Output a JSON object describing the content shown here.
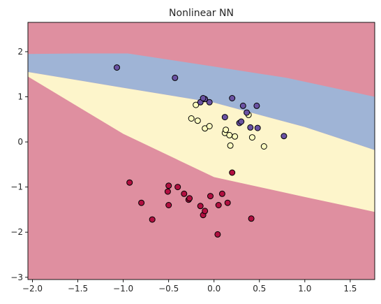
{
  "chart_data": {
    "type": "scatter",
    "title": "Nonlinear NN",
    "xlabel": "",
    "ylabel": "",
    "xlim": [
      -2.05,
      1.77
    ],
    "ylim": [
      -3.05,
      2.65
    ],
    "xticks": [
      -2.0,
      -1.5,
      -1.0,
      -0.5,
      0.0,
      0.5,
      1.0,
      1.5
    ],
    "xtick_labels": [
      "−2.0",
      "−1.5",
      "−1.0",
      "−0.5",
      "0.0",
      "0.5",
      "1.0",
      "1.5"
    ],
    "yticks": [
      -3,
      -2,
      -1,
      0,
      1,
      2
    ],
    "ytick_labels": [
      "−3",
      "−2",
      "−1",
      "0",
      "1",
      "2"
    ],
    "grid": false,
    "colors": {
      "region_red": "#df8fa0",
      "region_blue": "#9fb4d6",
      "region_yellow": "#fdf5cb",
      "class_red": "#b10f40",
      "class_yellow": "#fdfdbf",
      "class_purple": "#6a52a3"
    },
    "decision_regions": [
      {
        "class": "red",
        "color": "#df8fa0",
        "polygon": [
          [
            -2.05,
            2.65
          ],
          [
            1.77,
            2.65
          ],
          [
            1.77,
            -3.05
          ],
          [
            -2.05,
            -3.05
          ]
        ]
      },
      {
        "class": "blue",
        "color": "#9fb4d6",
        "polygon": [
          [
            -2.05,
            1.95
          ],
          [
            -1.5,
            1.96
          ],
          [
            -0.95,
            1.96
          ],
          [
            0.0,
            1.67
          ],
          [
            0.8,
            1.42
          ],
          [
            1.77,
            1.0
          ],
          [
            1.77,
            -0.18
          ],
          [
            1.0,
            0.33
          ],
          [
            0.0,
            0.87
          ],
          [
            -1.0,
            1.2
          ],
          [
            -2.05,
            1.55
          ]
        ]
      },
      {
        "class": "yellow",
        "color": "#fdf5cb",
        "polygon": [
          [
            -2.05,
            1.55
          ],
          [
            -1.0,
            1.2
          ],
          [
            0.0,
            0.87
          ],
          [
            1.0,
            0.33
          ],
          [
            1.77,
            -0.18
          ],
          [
            1.77,
            -1.55
          ],
          [
            1.0,
            -1.22
          ],
          [
            0.0,
            -0.78
          ],
          [
            -1.0,
            0.18
          ],
          [
            -2.05,
            1.45
          ]
        ]
      }
    ],
    "series": [
      {
        "class": "red",
        "color": "#b10f40",
        "points": [
          [
            -0.93,
            -0.9
          ],
          [
            -0.8,
            -1.35
          ],
          [
            -0.68,
            -1.72
          ],
          [
            -0.5,
            -0.97
          ],
          [
            -0.51,
            -1.1
          ],
          [
            -0.5,
            -1.4
          ],
          [
            -0.4,
            -1.0
          ],
          [
            -0.33,
            -1.15
          ],
          [
            -0.28,
            -1.28
          ],
          [
            -0.27,
            -1.25
          ],
          [
            -0.15,
            -1.42
          ],
          [
            -0.12,
            -1.62
          ],
          [
            -0.1,
            -1.53
          ],
          [
            -0.04,
            -1.2
          ],
          [
            0.05,
            -1.4
          ],
          [
            0.04,
            -2.05
          ],
          [
            0.09,
            -1.15
          ],
          [
            0.15,
            -1.35
          ],
          [
            0.2,
            -0.68
          ],
          [
            0.41,
            -1.7
          ]
        ]
      },
      {
        "class": "yellow",
        "color": "#fdfdbf",
        "points": [
          [
            -0.25,
            0.52
          ],
          [
            -0.2,
            0.82
          ],
          [
            -0.18,
            0.47
          ],
          [
            -0.1,
            0.3
          ],
          [
            -0.05,
            0.35
          ],
          [
            0.12,
            0.2
          ],
          [
            0.13,
            0.27
          ],
          [
            0.17,
            0.15
          ],
          [
            0.18,
            -0.08
          ],
          [
            0.23,
            0.12
          ],
          [
            0.38,
            0.6
          ],
          [
            0.42,
            0.1
          ],
          [
            0.55,
            -0.1
          ]
        ]
      },
      {
        "class": "purple",
        "color": "#6a52a3",
        "points": [
          [
            -1.07,
            1.65
          ],
          [
            -0.43,
            1.42
          ],
          [
            -0.15,
            0.88
          ],
          [
            -0.1,
            0.95
          ],
          [
            -0.12,
            0.97
          ],
          [
            -0.05,
            0.88
          ],
          [
            0.12,
            0.55
          ],
          [
            0.2,
            0.97
          ],
          [
            0.28,
            0.42
          ],
          [
            0.3,
            0.45
          ],
          [
            0.32,
            0.8
          ],
          [
            0.36,
            0.65
          ],
          [
            0.4,
            0.32
          ],
          [
            0.47,
            0.8
          ],
          [
            0.48,
            0.31
          ],
          [
            0.77,
            0.13
          ]
        ]
      }
    ]
  }
}
